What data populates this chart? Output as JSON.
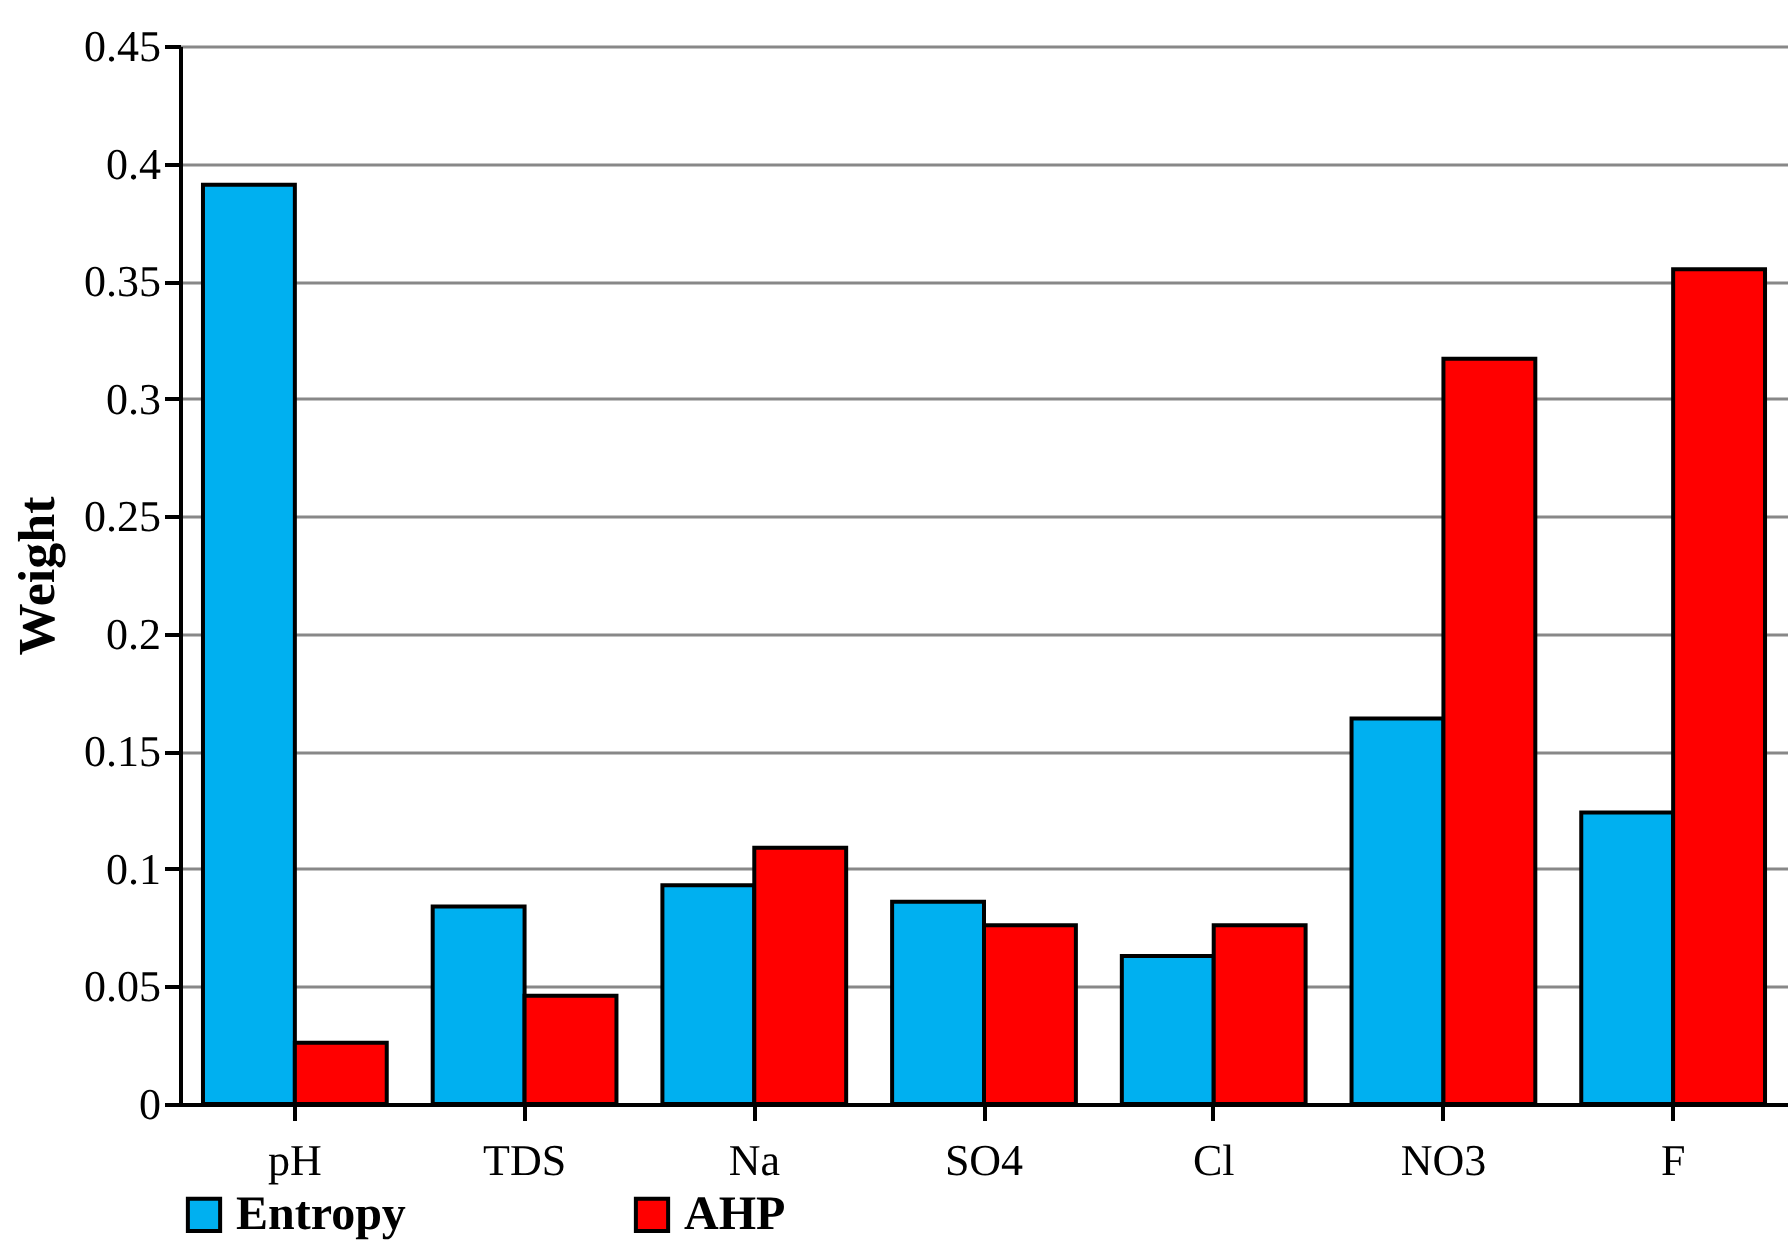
{
  "chart_data": {
    "type": "bar",
    "ylabel": "Weight",
    "categories": [
      "pH",
      "TDS",
      "Na",
      "SO4",
      "Cl",
      "NO3",
      "F"
    ],
    "series": [
      {
        "name": "Entropy",
        "color": "#00b0f0",
        "values": [
          0.391,
          0.084,
          0.093,
          0.086,
          0.063,
          0.164,
          0.124
        ]
      },
      {
        "name": "AHP",
        "color": "#ff0000",
        "values": [
          0.026,
          0.046,
          0.109,
          0.076,
          0.076,
          0.317,
          0.355
        ]
      }
    ],
    "ylim": [
      0,
      0.45
    ],
    "yticks": [
      0,
      0.05,
      0.1,
      0.15,
      0.2,
      0.25,
      0.3,
      0.35,
      0.4,
      0.45
    ],
    "grid": "y",
    "legend": "bottom"
  }
}
